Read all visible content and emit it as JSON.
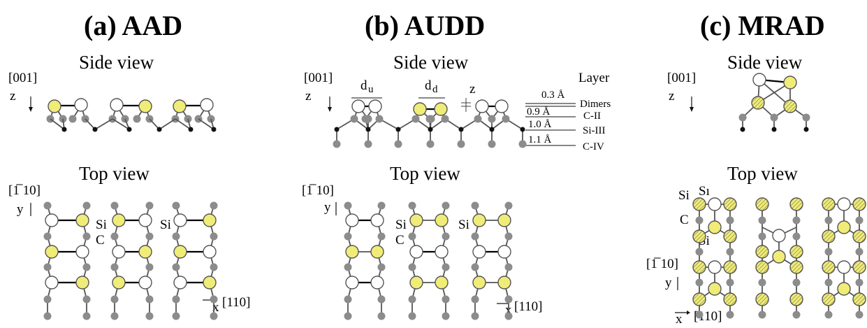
{
  "panels": {
    "a": {
      "title": "(a) AAD"
    },
    "b": {
      "title": "(b) AUDD"
    },
    "c": {
      "title": "(c) MRAD"
    }
  },
  "views": {
    "side": "Side view",
    "top": "Top view"
  },
  "axes": {
    "z_dir": "[001]",
    "z": "z",
    "y_dir": "[̅1̄⁠110]",
    "y_dir_text": "[1̅ 10]",
    "y": "y",
    "x_dir": "[110]",
    "x": "x"
  },
  "labels": {
    "si": "Si",
    "c": "C",
    "s1": "Sı",
    "du": "d",
    "du_sub": "u",
    "dd": "d",
    "dd_sub": "d",
    "z_small": "z"
  },
  "layers": {
    "header": "Layer",
    "spacing_dimer": "0.3 Å",
    "spacing_c2": "0.9 Å",
    "spacing_si3": "1.0 Å",
    "spacing_c4": "1.1 Å",
    "name_dimers": "Dimers",
    "name_c2": "C-II",
    "name_si3": "Si-III",
    "name_c4": "C-IV"
  },
  "colors": {
    "yellow": "#f0ec78",
    "grey": "#8c8c8c",
    "black": "#111111",
    "white": "#ffffff"
  }
}
